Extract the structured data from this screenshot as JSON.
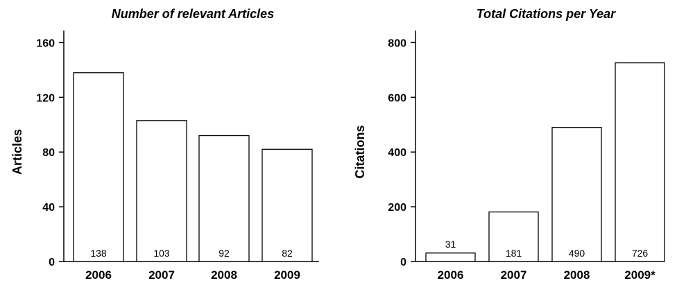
{
  "chart_data": [
    {
      "type": "bar",
      "title": "Number of relevant Articles",
      "xlabel": "",
      "ylabel": "Articles",
      "categories": [
        "2006",
        "2007",
        "2008",
        "2009"
      ],
      "values": [
        138,
        103,
        92,
        82
      ],
      "data_labels": [
        "138",
        "103",
        "92",
        "82"
      ],
      "ylim": [
        0,
        170
      ],
      "yticks": [
        0,
        40,
        80,
        120,
        160
      ],
      "grid": false,
      "bar_fill": "#ffffff",
      "bar_stroke": "#000000"
    },
    {
      "type": "bar",
      "title": "Total Citations per Year",
      "xlabel": "",
      "ylabel": "Citations",
      "categories": [
        "2006",
        "2007",
        "2008",
        "2009*"
      ],
      "values": [
        31,
        181,
        490,
        726
      ],
      "data_labels": [
        "31",
        "181",
        "490",
        "726"
      ],
      "ylim": [
        0,
        850
      ],
      "yticks": [
        0,
        200,
        400,
        600,
        800
      ],
      "grid": false,
      "bar_fill": "#ffffff",
      "bar_stroke": "#000000"
    }
  ]
}
